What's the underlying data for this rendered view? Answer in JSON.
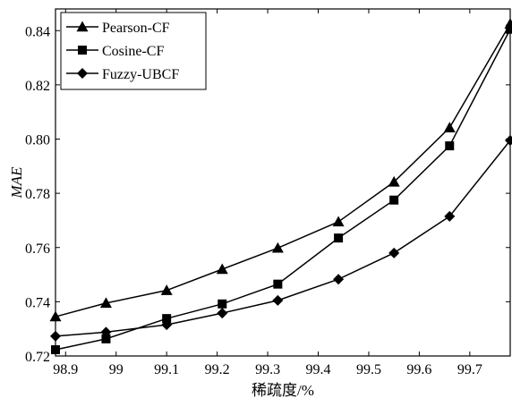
{
  "chart_data": {
    "type": "line",
    "xlabel": "稀疏度/%",
    "ylabel": "MAE",
    "xlim": [
      98.88,
      99.78
    ],
    "ylim": [
      0.72,
      0.848
    ],
    "xticks": [
      "98.9",
      "99",
      "99.1",
      "99.2",
      "99.3",
      "99.4",
      "99.5",
      "99.6",
      "99.7"
    ],
    "yticks": [
      "0.72",
      "0.74",
      "0.76",
      "0.78",
      "0.80",
      "0.82",
      "0.84"
    ],
    "grid": false,
    "legend_position": "top-left",
    "x": [
      98.88,
      98.98,
      99.1,
      99.21,
      99.32,
      99.44,
      99.55,
      99.66,
      99.78
    ],
    "series": [
      {
        "name": "Pearson-CF",
        "marker": "triangle",
        "values": [
          0.7345,
          0.7395,
          0.7442,
          0.752,
          0.7598,
          0.7695,
          0.7842,
          0.8042,
          0.8425
        ]
      },
      {
        "name": "Cosine-CF",
        "marker": "square",
        "values": [
          0.7223,
          0.7263,
          0.7338,
          0.7392,
          0.7465,
          0.7635,
          0.7775,
          0.7975,
          0.8405
        ]
      },
      {
        "name": "Fuzzy-UBCF",
        "marker": "diamond",
        "values": [
          0.7273,
          0.7288,
          0.7315,
          0.7358,
          0.7405,
          0.7483,
          0.758,
          0.7715,
          0.7995
        ]
      }
    ]
  }
}
